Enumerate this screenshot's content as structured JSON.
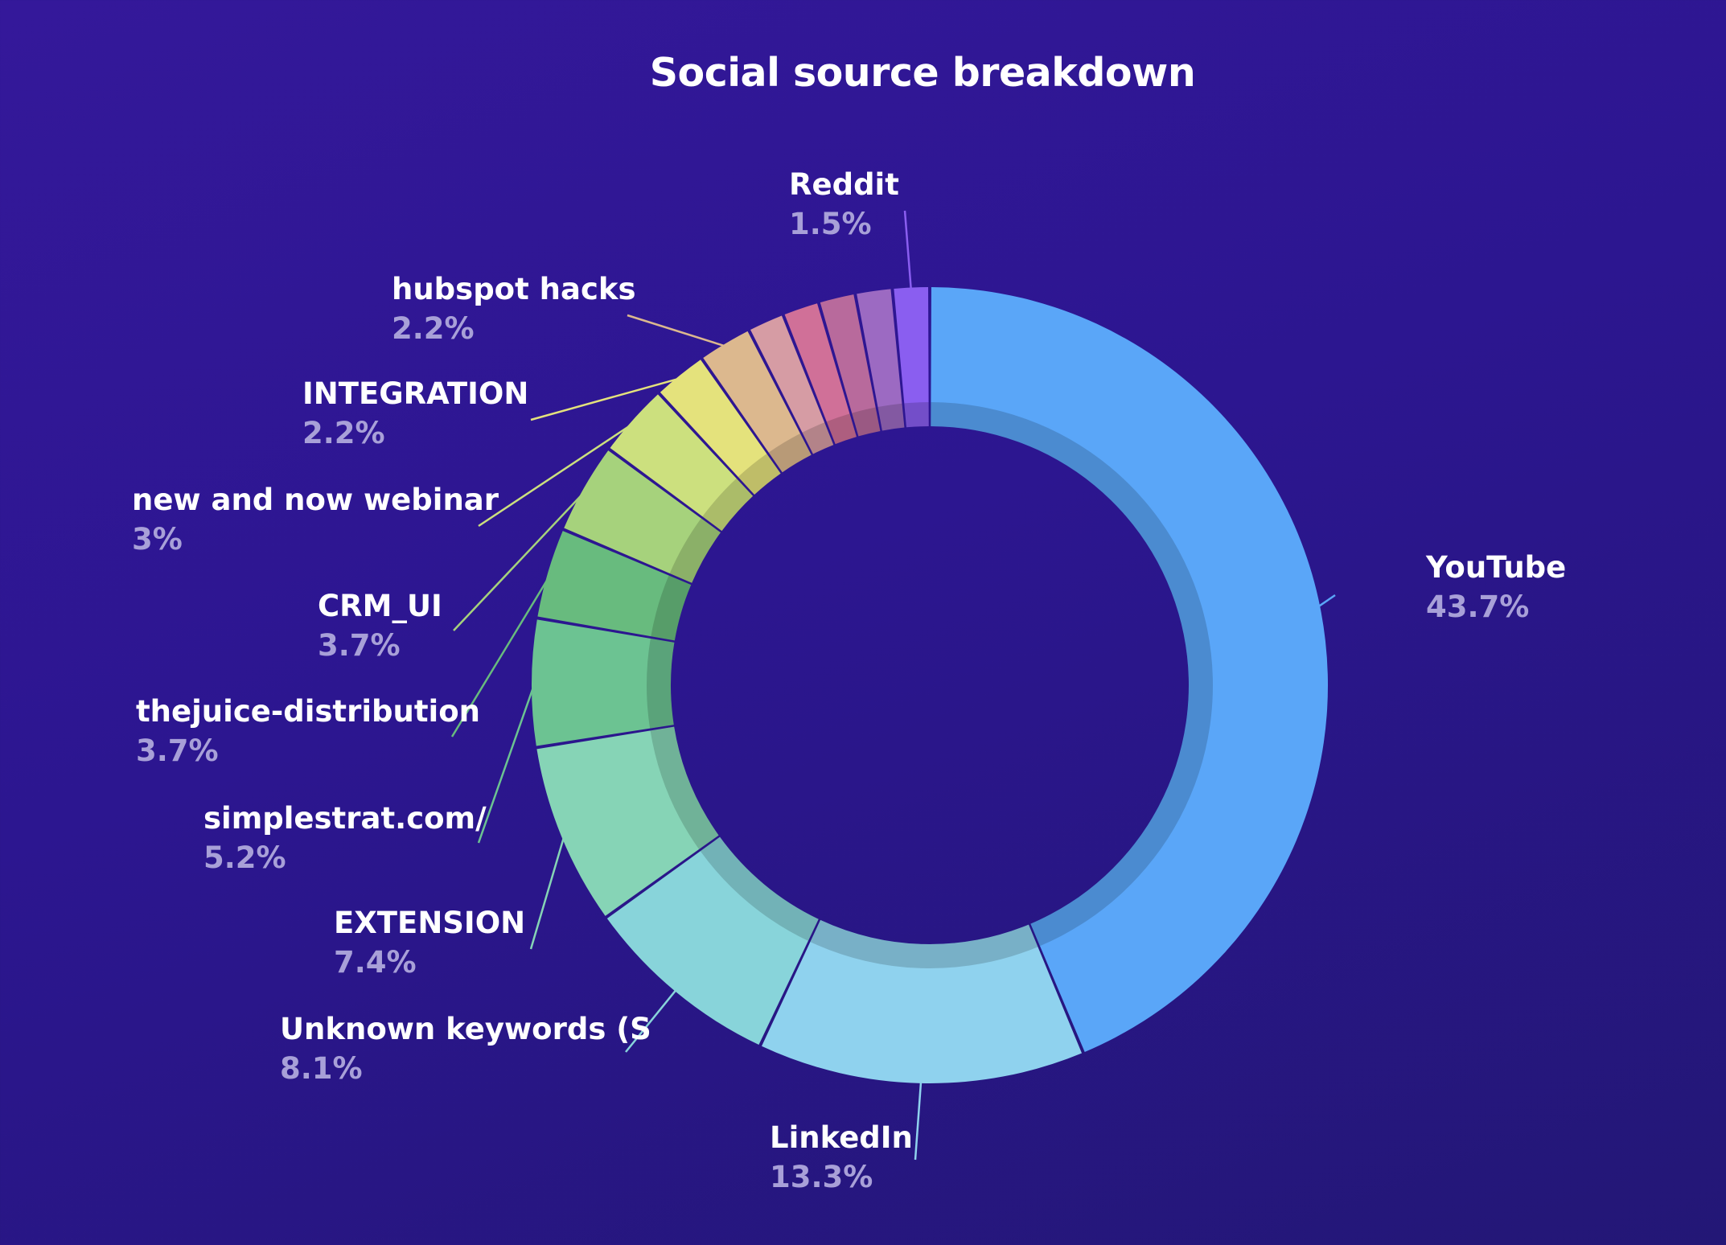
{
  "chart_data": {
    "type": "pie",
    "variant": "donut",
    "title": "Social source breakdown",
    "legend": "none",
    "slices": [
      {
        "label": "YouTube",
        "value_label": "43.7%",
        "value": 43.7,
        "color": "#5aa6f8"
      },
      {
        "label": "LinkedIn",
        "value_label": "13.3%",
        "value": 13.3,
        "color": "#8fd2ee"
      },
      {
        "label": "Unknown keywords (S",
        "value_label": "8.1%",
        "value": 8.1,
        "color": "#88d4da"
      },
      {
        "label": "EXTENSION",
        "value_label": "7.4%",
        "value": 7.4,
        "color": "#86d4b6"
      },
      {
        "label": "simplestrat.com/",
        "value_label": "5.2%",
        "value": 5.2,
        "color": "#6cc392"
      },
      {
        "label": "thejuice-distribution",
        "value_label": "3.7%",
        "value": 3.7,
        "color": "#68bb7e"
      },
      {
        "label": "CRM_UI",
        "value_label": "3.7%",
        "value": 3.7,
        "color": "#a6d27c"
      },
      {
        "label": "new and now webinar",
        "value_label": "3%",
        "value": 3.0,
        "color": "#cce07e"
      },
      {
        "label": "INTEGRATION",
        "value_label": "2.2%",
        "value": 2.2,
        "color": "#e4e27c"
      },
      {
        "label": "hubspot hacks",
        "value_label": "2.2%",
        "value": 2.2,
        "color": "#dcb88e"
      },
      {
        "label": "",
        "value_label": "",
        "value": 1.5,
        "color": "#d69ca4"
      },
      {
        "label": "",
        "value_label": "",
        "value": 1.5,
        "color": "#d07098"
      },
      {
        "label": "",
        "value_label": "",
        "value": 1.5,
        "color": "#b86a9c"
      },
      {
        "label": "",
        "value_label": "",
        "value": 1.5,
        "color": "#9c6ac2"
      },
      {
        "label": "Reddit",
        "value_label": "1.5%",
        "value": 1.5,
        "color": "#8a5ef0"
      }
    ]
  }
}
